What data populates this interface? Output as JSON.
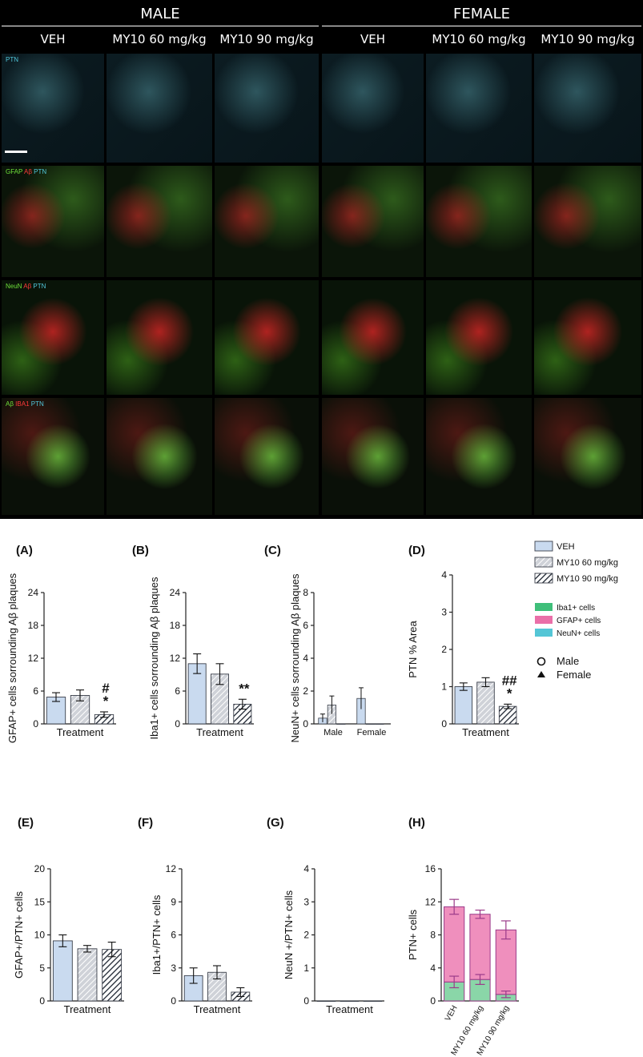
{
  "figure": {
    "sex_headers": [
      "MALE",
      "FEMALE"
    ],
    "column_headers": [
      "VEH",
      "MY10 60 mg/kg",
      "MY10 90 mg/kg",
      "VEH",
      "MY10 60 mg/kg",
      "MY10 90 mg/kg"
    ],
    "row_labels": [
      [
        {
          "t": "PTN",
          "c": "#52c8dc"
        }
      ],
      [
        {
          "t": "GFAP",
          "c": "#6ee03a"
        },
        {
          "t": "Aβ",
          "c": "#ff3a3a"
        },
        {
          "t": "PTN",
          "c": "#52c8dc"
        }
      ],
      [
        {
          "t": "NeuN",
          "c": "#6ee03a"
        },
        {
          "t": "Aβ",
          "c": "#ff3a3a"
        },
        {
          "t": "PTN",
          "c": "#52c8dc"
        }
      ],
      [
        {
          "t": "Aβ",
          "c": "#6ee03a"
        },
        {
          "t": "IBA1",
          "c": "#ff3a3a"
        },
        {
          "t": "PTN",
          "c": "#52c8dc"
        }
      ]
    ]
  },
  "legend": {
    "treatments": [
      "VEH",
      "MY10 60 mg/kg",
      "MY10 90 mg/kg"
    ],
    "cell_types": [
      "Iba1+ cells",
      "GFAP+ cells",
      "NeuN+ cells"
    ],
    "cell_colors": [
      "#3fbf7a",
      "#ea6fa8",
      "#54c6d6"
    ],
    "sex": [
      "Male",
      "Female"
    ]
  },
  "colors": {
    "veh_fill": "#c9daef",
    "my60_fill": "#cfd2d8",
    "my90_fill": "#ffffff",
    "gfap_bar": "#ef8fbd",
    "iba1_bar": "#8ad6a8",
    "bar_stroke": "#9b3b8a"
  },
  "chart_data": [
    {
      "id": "A",
      "type": "bar",
      "panel_label": "(A)",
      "ylabel": "GFAP+ cells sorrounding Aβ plaques",
      "xlabel": "Treatment",
      "ylim": [
        0,
        24
      ],
      "yticks": [
        0,
        6,
        12,
        18,
        24
      ],
      "categories": [
        "VEH",
        "MY10 60 mg/kg",
        "MY10 90 mg/kg"
      ],
      "values": [
        4.9,
        5.2,
        1.7
      ],
      "errors": [
        0.8,
        1.0,
        0.5
      ],
      "annotations": [
        "",
        "",
        "#\n*"
      ]
    },
    {
      "id": "B",
      "type": "bar",
      "panel_label": "(B)",
      "ylabel": "Iba1+ cells sorrounding Aβ plaques",
      "xlabel": "Treatment",
      "ylim": [
        0,
        24
      ],
      "yticks": [
        0,
        6,
        12,
        18,
        24
      ],
      "categories": [
        "VEH",
        "MY10 60 mg/kg",
        "MY10 90 mg/kg"
      ],
      "values": [
        11,
        9.1,
        3.6
      ],
      "errors": [
        1.8,
        1.9,
        0.9
      ],
      "annotations": [
        "",
        "",
        "**"
      ]
    },
    {
      "id": "C",
      "type": "bar",
      "panel_label": "(C)",
      "ylabel": "NeuN+ cells sorrounding Aβ plaques",
      "xlabel": "",
      "ylim": [
        0,
        8
      ],
      "yticks": [
        0,
        2,
        4,
        6,
        8
      ],
      "groups": [
        "Male",
        "Female"
      ],
      "categories": [
        "VEH",
        "MY10 60 mg/kg",
        "MY10 90 mg/kg"
      ],
      "values": [
        [
          0.35,
          1.15,
          0.0
        ],
        [
          1.55,
          0.0,
          0.0
        ]
      ],
      "errors": [
        [
          0.25,
          0.55,
          0
        ],
        [
          0.65,
          0,
          0
        ]
      ]
    },
    {
      "id": "D",
      "type": "bar",
      "panel_label": "(D)",
      "ylabel": "PTN % Area",
      "xlabel": "Treatment",
      "ylim": [
        0,
        4
      ],
      "yticks": [
        0,
        1,
        2,
        3,
        4
      ],
      "categories": [
        "VEH",
        "MY10 60 mg/kg",
        "MY10 90 mg/kg"
      ],
      "values": [
        1.0,
        1.12,
        0.47
      ],
      "errors": [
        0.1,
        0.12,
        0.06
      ],
      "annotations": [
        "",
        "",
        "##\n*"
      ]
    },
    {
      "id": "E",
      "type": "bar",
      "panel_label": "(E)",
      "ylabel": "GFAP+/PTN+ cells",
      "xlabel": "Treatment",
      "ylim": [
        0,
        20
      ],
      "yticks": [
        0,
        5,
        10,
        15,
        20
      ],
      "categories": [
        "VEH",
        "MY10 60 mg/kg",
        "MY10 90 mg/kg"
      ],
      "values": [
        9.1,
        7.9,
        7.8
      ],
      "errors": [
        0.9,
        0.5,
        1.1
      ]
    },
    {
      "id": "F",
      "type": "bar",
      "panel_label": "(F)",
      "ylabel": "Iba1+/PTN+ cells",
      "xlabel": "Treatment",
      "ylim": [
        0,
        12
      ],
      "yticks": [
        0,
        3,
        6,
        9,
        12
      ],
      "categories": [
        "VEH",
        "MY10 60 mg/kg",
        "MY10 90 mg/kg"
      ],
      "values": [
        2.3,
        2.6,
        0.8
      ],
      "errors": [
        0.7,
        0.6,
        0.4
      ]
    },
    {
      "id": "G",
      "type": "bar",
      "panel_label": "(G)",
      "ylabel": "NeuN +/PTN+ cells",
      "xlabel": "Treatment",
      "ylim": [
        0,
        4
      ],
      "yticks": [
        0,
        1,
        2,
        3,
        4
      ],
      "categories": [
        "VEH",
        "MY10 60 mg/kg",
        "MY10 90 mg/kg"
      ],
      "values": [
        0,
        0,
        0
      ],
      "errors": [
        0,
        0,
        0
      ]
    },
    {
      "id": "H",
      "type": "bar",
      "stacked": true,
      "panel_label": "(H)",
      "ylabel": "PTN+ cells",
      "xlabel": "",
      "ylim": [
        0,
        16
      ],
      "yticks": [
        0,
        4,
        8,
        12,
        16
      ],
      "categories": [
        "VEH",
        "MY10 60 mg/kg",
        "MY10 90 mg/kg"
      ],
      "series": [
        {
          "name": "Iba1+ cells",
          "values": [
            2.3,
            2.6,
            0.8
          ],
          "errors": [
            0.7,
            0.6,
            0.4
          ]
        },
        {
          "name": "GFAP+ cells",
          "values": [
            9.1,
            7.9,
            7.8
          ],
          "errors": [
            0.9,
            0.5,
            1.1
          ]
        }
      ]
    }
  ]
}
